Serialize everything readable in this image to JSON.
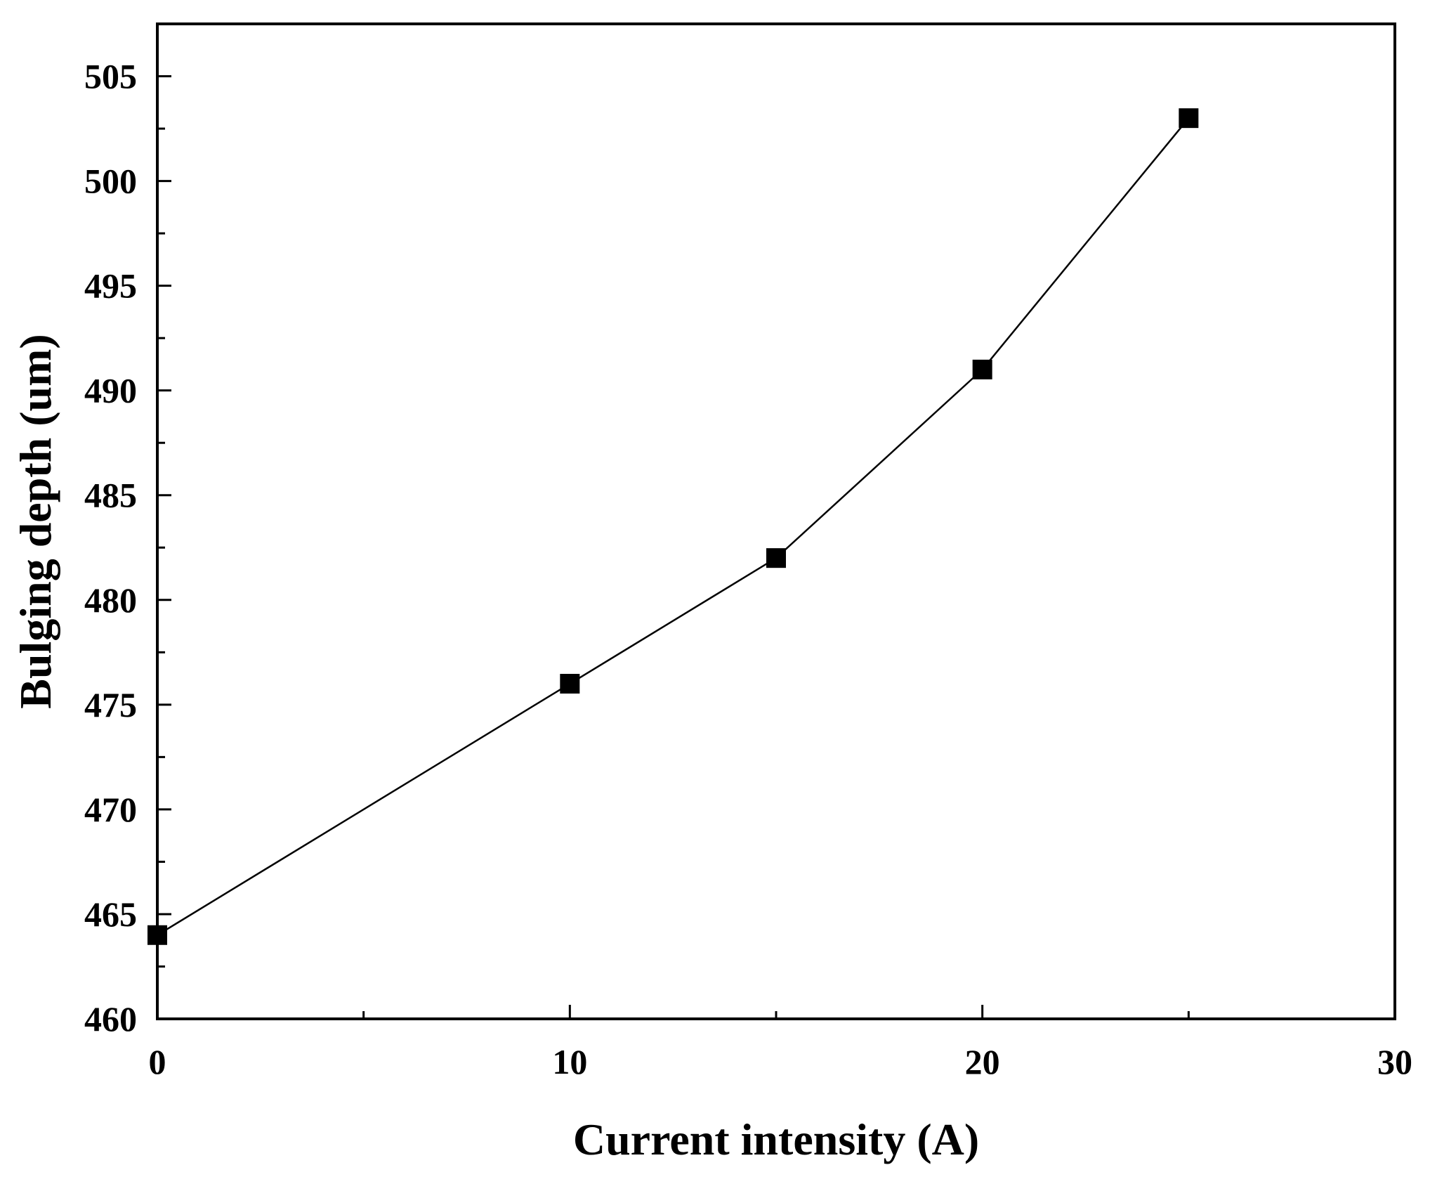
{
  "chart_data": {
    "type": "line",
    "title": "",
    "xlabel": "Current intensity (A)",
    "ylabel": "Bulging depth (um)",
    "xlim": [
      0,
      30
    ],
    "ylim": [
      460,
      507.5
    ],
    "x_ticks": [
      0,
      10,
      20,
      30
    ],
    "x_tick_labels": [
      "0",
      "10",
      "20",
      "30"
    ],
    "x_minor_ticks": [
      5,
      15,
      25
    ],
    "y_ticks": [
      460,
      465,
      470,
      475,
      480,
      485,
      490,
      495,
      500,
      505
    ],
    "y_tick_labels": [
      "460",
      "465",
      "470",
      "475",
      "480",
      "485",
      "490",
      "495",
      "500",
      "505"
    ],
    "y_minor_ticks": [
      462.5,
      467.5,
      472.5,
      477.5,
      482.5,
      487.5,
      492.5,
      497.5,
      502.5
    ],
    "grid": false,
    "legend": "none",
    "marker": "square",
    "line_color": "#000000",
    "marker_color": "#000000",
    "series": [
      {
        "x": [
          0,
          10,
          15,
          20,
          25
        ],
        "y": [
          464,
          476,
          482,
          491,
          503
        ]
      }
    ]
  }
}
